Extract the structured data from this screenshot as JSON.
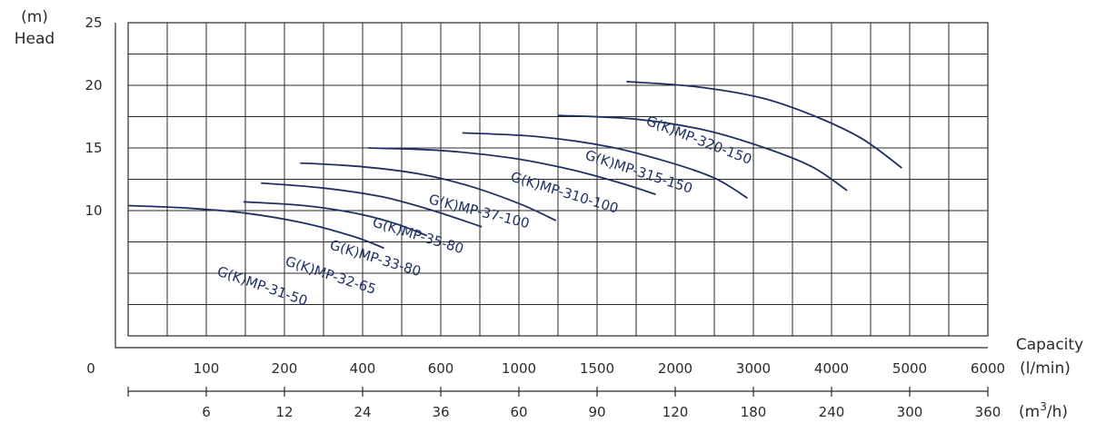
{
  "chart_data": {
    "type": "line",
    "title": "",
    "grid": true,
    "colors": {
      "curve": "#1e3163",
      "grid": "#2a2a2a",
      "text": "#2b2b2b"
    },
    "y_axis": {
      "label_unit": "(m)",
      "label": "Head",
      "ylim": [
        0,
        25
      ],
      "ticks": [
        {
          "value": 10,
          "label": "10"
        },
        {
          "value": 15,
          "label": "15"
        },
        {
          "value": 20,
          "label": "20"
        },
        {
          "value": 25,
          "label": "25"
        }
      ]
    },
    "x_axis_lmin": {
      "label": "Capacity",
      "unit": "(l/min)",
      "origin_label": "0",
      "ticks": [
        "100",
        "200",
        "400",
        "600",
        "1000",
        "1500",
        "2000",
        "3000",
        "4000",
        "5000",
        "6000"
      ]
    },
    "x_axis_m3h": {
      "unit_prefix": "(m",
      "unit_sup": "3",
      "unit_suffix": "/h)",
      "ticks": [
        "6",
        "12",
        "24",
        "36",
        "60",
        "90",
        "120",
        "180",
        "240",
        "300",
        "360"
      ]
    },
    "x_divisions": 22,
    "series": [
      {
        "name": "G(K)MP-31-50",
        "points": [
          [
            0,
            10.4
          ],
          [
            1.5,
            10.2
          ],
          [
            3.0,
            9.8
          ],
          [
            4.5,
            9.0
          ],
          [
            5.8,
            7.9
          ],
          [
            6.55,
            7.0
          ]
        ]
      },
      {
        "name": "G(K)MP-32-65",
        "points": [
          [
            2.95,
            10.7
          ],
          [
            4.5,
            10.4
          ],
          [
            5.8,
            9.8
          ],
          [
            6.8,
            9.0
          ],
          [
            7.65,
            8.0
          ]
        ]
      },
      {
        "name": "G(K)MP-33-80",
        "points": [
          [
            3.4,
            12.2
          ],
          [
            5.0,
            11.8
          ],
          [
            6.5,
            11.1
          ],
          [
            7.8,
            10.0
          ],
          [
            9.05,
            8.7
          ]
        ]
      },
      {
        "name": "G(K)MP-35-80",
        "points": [
          [
            4.4,
            13.8
          ],
          [
            6.0,
            13.5
          ],
          [
            7.5,
            12.9
          ],
          [
            8.8,
            11.9
          ],
          [
            10.05,
            10.5
          ],
          [
            10.95,
            9.2
          ]
        ]
      },
      {
        "name": "G(K)MP-37-100",
        "points": [
          [
            6.15,
            15.0
          ],
          [
            8.0,
            14.8
          ],
          [
            9.8,
            14.2
          ],
          [
            11.3,
            13.3
          ],
          [
            12.6,
            12.2
          ],
          [
            13.5,
            11.3
          ]
        ]
      },
      {
        "name": "G(K)MP-310-100",
        "points": [
          [
            8.55,
            16.2
          ],
          [
            10.5,
            15.9
          ],
          [
            12.3,
            15.1
          ],
          [
            13.8,
            13.9
          ],
          [
            15.0,
            12.6
          ],
          [
            15.85,
            11.0
          ]
        ]
      },
      {
        "name": "G(K)MP-315-150",
        "points": [
          [
            11.0,
            17.6
          ],
          [
            13.0,
            17.3
          ],
          [
            14.8,
            16.4
          ],
          [
            16.3,
            15.0
          ],
          [
            17.5,
            13.5
          ],
          [
            18.4,
            11.6
          ]
        ]
      },
      {
        "name": "G(K)MP-320-150",
        "points": [
          [
            12.75,
            20.3
          ],
          [
            14.5,
            19.9
          ],
          [
            16.2,
            19.0
          ],
          [
            17.6,
            17.5
          ],
          [
            18.8,
            15.7
          ],
          [
            19.8,
            13.4
          ]
        ]
      }
    ],
    "curve_labels": [
      "G(K)MP-31-50",
      "G(K)MP-32-65",
      "G(K)MP-33-80",
      "G(K)MP-35-80",
      "G(K)MP-37-100",
      "G(K)MP-310-100",
      "G(K)MP-315-150",
      "G(K)MP-320-150"
    ]
  }
}
